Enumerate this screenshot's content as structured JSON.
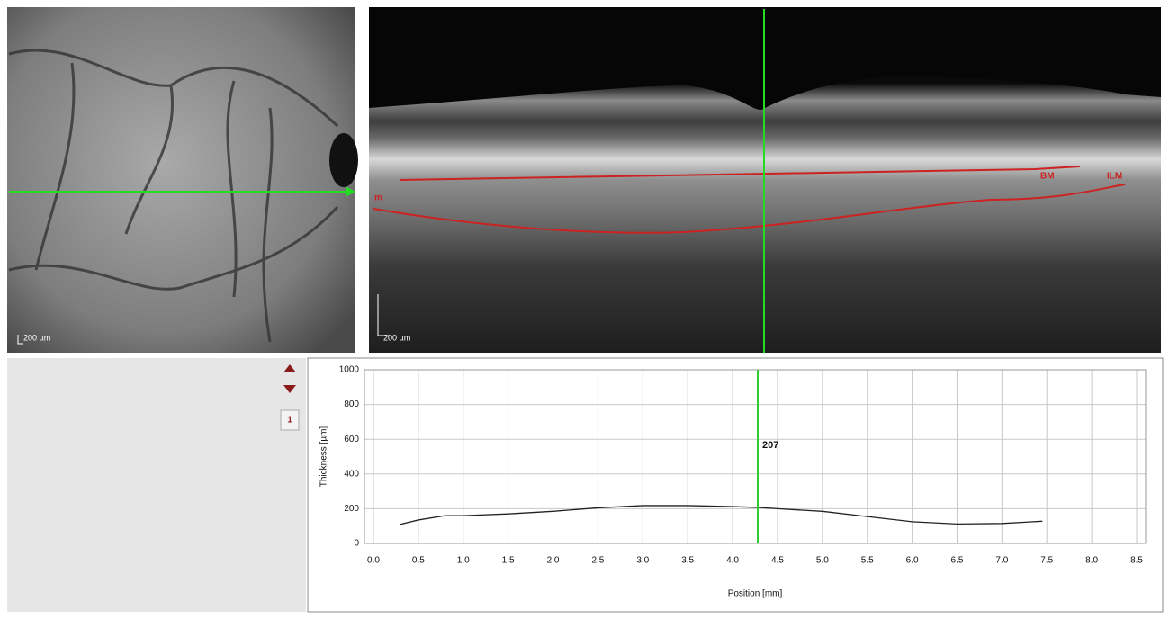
{
  "fundus": {
    "scale_label": "200 µm"
  },
  "oct": {
    "scale_label": "200 µm",
    "layer_labels": [
      "m",
      "BM",
      "ILM"
    ]
  },
  "controls": {
    "page": "1"
  },
  "chart_data": {
    "type": "line",
    "x_label": "Position [mm]",
    "y_label": "Thickness [µm]",
    "x": [
      0.3,
      0.5,
      0.8,
      1.0,
      1.5,
      2.0,
      2.5,
      3.0,
      3.5,
      4.0,
      4.3,
      4.5,
      5.0,
      5.5,
      6.0,
      6.5,
      7.0,
      7.45
    ],
    "series": [
      {
        "color": "#222222",
        "values": [
          110,
          135,
          160,
          160,
          170,
          185,
          205,
          218,
          218,
          212,
          207,
          200,
          185,
          155,
          125,
          112,
          115,
          128
        ]
      }
    ],
    "marker": {
      "x": 4.28,
      "value": 207,
      "color": "#2ecc2e"
    },
    "xlim": [
      -0.1,
      8.6
    ],
    "xticks": [
      {
        "value": 0,
        "label": "0.0"
      },
      0.5,
      {
        "value": 1,
        "label": "1.0"
      },
      1.5,
      {
        "value": 2,
        "label": "2.0"
      },
      2.5,
      {
        "value": 3,
        "label": "3.0"
      },
      3.5,
      {
        "value": 4,
        "label": "4.0"
      },
      4.5,
      {
        "value": 5,
        "label": "5.0"
      },
      5.5,
      {
        "value": 6,
        "label": "6.0"
      },
      6.5,
      {
        "value": 7,
        "label": "7.0"
      },
      7.5,
      {
        "value": 8,
        "label": "8.0"
      },
      8.5
    ],
    "ylim": [
      0,
      1000
    ],
    "yticks": [
      0,
      200,
      400,
      600,
      800,
      1000
    ],
    "grid": true
  }
}
